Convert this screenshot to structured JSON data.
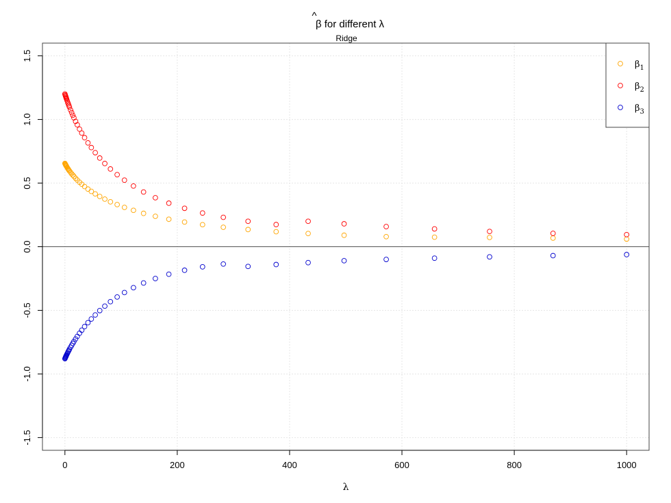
{
  "title": {
    "base": "β",
    "rest": " for different λ"
  },
  "subtitle": "Ridge",
  "chart_data": {
    "type": "scatter",
    "xlabel": "λ",
    "ylabel": "",
    "xlim": [
      -40,
      1040
    ],
    "ylim": [
      -1.6,
      1.6
    ],
    "x_ticks": [
      0,
      200,
      400,
      600,
      800,
      1000
    ],
    "x_tick_labels": [
      "0",
      "200",
      "400",
      "600",
      "800",
      "1000"
    ],
    "y_ticks": [
      -1.5,
      -1.0,
      -0.5,
      0.0,
      0.5,
      1.0,
      1.5
    ],
    "y_tick_labels": [
      "-1.5",
      "-1.0",
      "-0.5",
      "0.0",
      "0.5",
      "1.0",
      "1.5"
    ],
    "grid": true,
    "hline": 0,
    "legend_position": "top-right",
    "x": [
      0,
      0.5,
      1,
      1.5,
      2,
      2.5,
      3,
      4,
      5,
      6,
      7,
      8,
      10,
      12,
      14,
      16,
      19,
      22,
      26,
      30,
      35,
      41,
      47,
      54,
      62,
      71,
      81,
      93,
      106,
      122,
      140,
      161,
      185,
      213,
      245,
      282,
      326,
      376,
      433,
      497,
      572,
      658,
      756,
      869,
      1000
    ],
    "series": [
      {
        "name": "β1",
        "label_base": "β",
        "label_sub": "1",
        "color": "#FFA500",
        "values": [
          0.655,
          0.65,
          0.646,
          0.642,
          0.638,
          0.634,
          0.63,
          0.623,
          0.616,
          0.609,
          0.602,
          0.596,
          0.585,
          0.573,
          0.563,
          0.553,
          0.538,
          0.524,
          0.507,
          0.491,
          0.473,
          0.453,
          0.435,
          0.415,
          0.395,
          0.374,
          0.353,
          0.331,
          0.309,
          0.286,
          0.262,
          0.239,
          0.216,
          0.194,
          0.173,
          0.153,
          0.135,
          0.118,
          0.104,
          0.09,
          0.079,
          0.075,
          0.073,
          0.068,
          0.06
        ]
      },
      {
        "name": "β2",
        "label_base": "β",
        "label_sub": "2",
        "color": "#FF0000",
        "values": [
          1.2,
          1.193,
          1.186,
          1.18,
          1.173,
          1.166,
          1.16,
          1.147,
          1.134,
          1.122,
          1.11,
          1.098,
          1.075,
          1.054,
          1.033,
          1.013,
          0.985,
          0.958,
          0.924,
          0.893,
          0.857,
          0.816,
          0.779,
          0.739,
          0.697,
          0.654,
          0.611,
          0.566,
          0.523,
          0.477,
          0.43,
          0.385,
          0.342,
          0.302,
          0.265,
          0.231,
          0.2,
          0.174,
          0.2,
          0.18,
          0.158,
          0.14,
          0.12,
          0.105,
          0.095
        ]
      },
      {
        "name": "β3",
        "label_base": "β",
        "label_sub": "3",
        "color": "#0000CD",
        "values": [
          -0.88,
          -0.875,
          -0.87,
          -0.865,
          -0.86,
          -0.855,
          -0.85,
          -0.841,
          -0.832,
          -0.823,
          -0.815,
          -0.806,
          -0.79,
          -0.775,
          -0.76,
          -0.745,
          -0.725,
          -0.705,
          -0.68,
          -0.656,
          -0.628,
          -0.597,
          -0.568,
          -0.536,
          -0.502,
          -0.467,
          -0.432,
          -0.395,
          -0.36,
          -0.322,
          -0.285,
          -0.25,
          -0.216,
          -0.185,
          -0.158,
          -0.136,
          -0.155,
          -0.14,
          -0.125,
          -0.11,
          -0.1,
          -0.09,
          -0.08,
          -0.07,
          -0.062
        ]
      }
    ]
  }
}
